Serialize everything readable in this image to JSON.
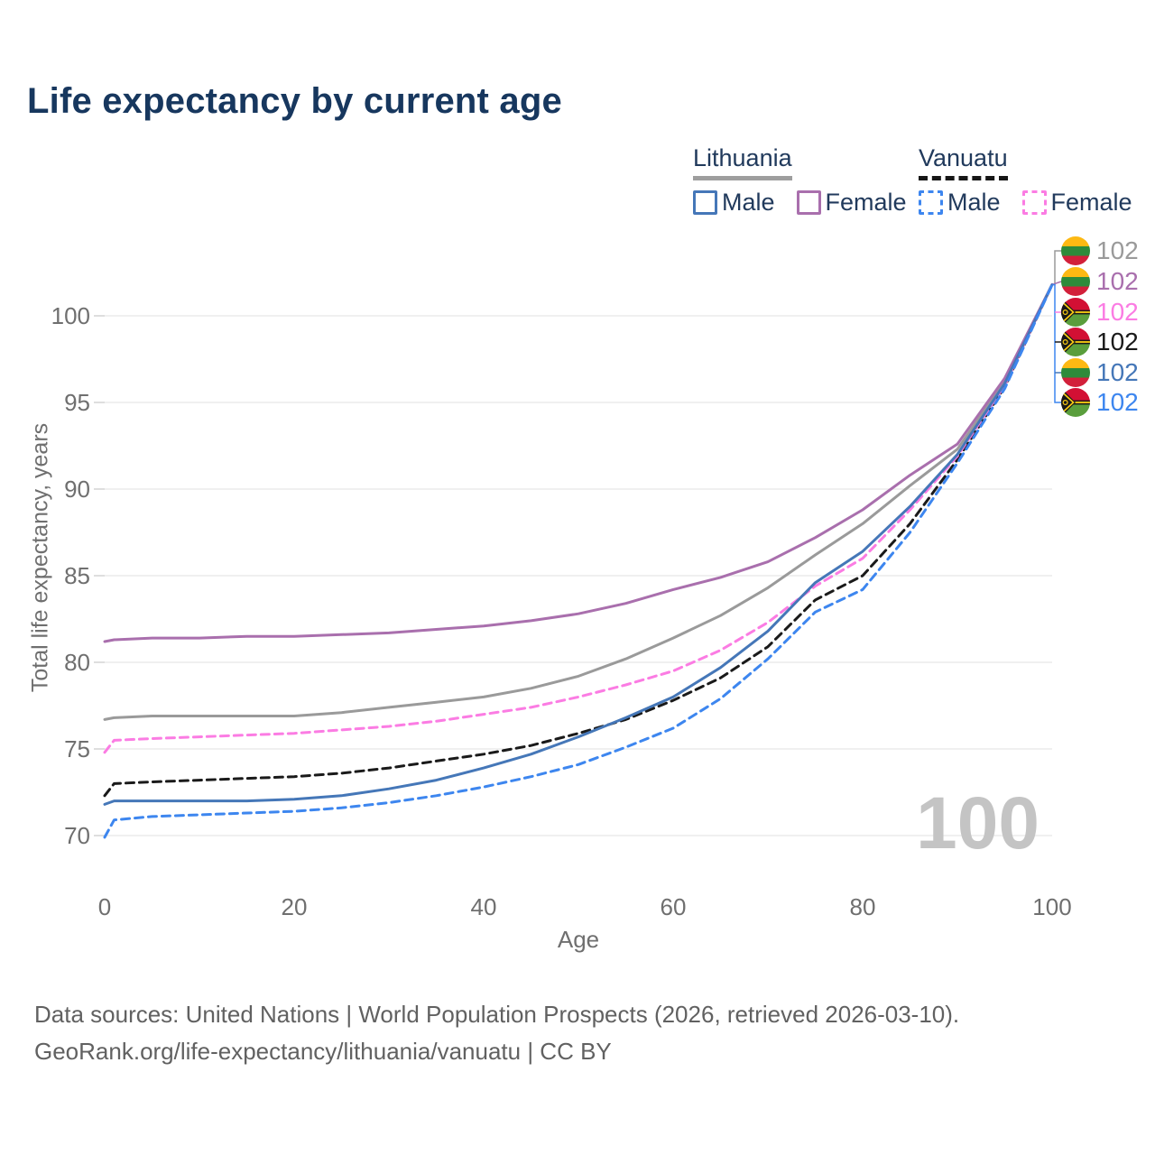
{
  "title": "Life expectancy by current age",
  "legend": {
    "groups": [
      {
        "id": "lithuania",
        "label": "Lithuania",
        "line_style": "solid",
        "line_color": "#9e9e9e",
        "items": [
          {
            "label": "Male",
            "color": "#4577b8",
            "dashed": false
          },
          {
            "label": "Female",
            "color": "#a96fad",
            "dashed": false
          }
        ]
      },
      {
        "id": "vanuatu",
        "label": "Vanuatu",
        "line_style": "dashed",
        "line_color": "#161616",
        "items": [
          {
            "label": "Male",
            "color": "#3d86ef",
            "dashed": true
          },
          {
            "label": "Female",
            "color": "#fb7ce3",
            "dashed": true
          }
        ]
      }
    ]
  },
  "chart_data": {
    "type": "line",
    "xlabel": "Age",
    "ylabel": "Total life expectancy, years",
    "x_ticks": [
      0,
      20,
      40,
      60,
      80,
      100
    ],
    "y_ticks": [
      70,
      75,
      80,
      85,
      90,
      95,
      100
    ],
    "xlim": [
      0,
      100
    ],
    "ylim": [
      67,
      104
    ],
    "grid": "horizontal",
    "legend_position": "top-right",
    "watermark": "100",
    "x": [
      0,
      1,
      5,
      10,
      15,
      20,
      25,
      30,
      35,
      40,
      45,
      50,
      55,
      60,
      65,
      70,
      75,
      80,
      85,
      90,
      95,
      100
    ],
    "series": [
      {
        "id": "lt-total",
        "name": "Lithuania",
        "country": "Lithuania",
        "sex": "Both",
        "color": "#9a9a9a",
        "dashed": false,
        "flag": "lt",
        "end_label": "102",
        "values": [
          76.7,
          76.8,
          76.9,
          76.9,
          76.9,
          76.9,
          77.1,
          77.4,
          77.7,
          78.0,
          78.5,
          79.2,
          80.2,
          81.4,
          82.7,
          84.3,
          86.2,
          88.0,
          90.2,
          92.3,
          96.2,
          101.8
        ]
      },
      {
        "id": "lt-female",
        "name": "Lithuania Female",
        "country": "Lithuania",
        "sex": "Female",
        "color": "#a96fad",
        "dashed": false,
        "flag": "lt",
        "end_label": "102",
        "values": [
          81.2,
          81.3,
          81.4,
          81.4,
          81.5,
          81.5,
          81.6,
          81.7,
          81.9,
          82.1,
          82.4,
          82.8,
          83.4,
          84.2,
          84.9,
          85.8,
          87.2,
          88.8,
          90.8,
          92.6,
          96.4,
          101.8
        ]
      },
      {
        "id": "vu-female",
        "name": "Vanuatu Female",
        "country": "Vanuatu",
        "sex": "Female",
        "color": "#fb7ce3",
        "dashed": true,
        "flag": "vu",
        "end_label": "102",
        "values": [
          74.8,
          75.5,
          75.6,
          75.7,
          75.8,
          75.9,
          76.1,
          76.3,
          76.6,
          77.0,
          77.4,
          78.0,
          78.7,
          79.5,
          80.7,
          82.3,
          84.4,
          86.0,
          88.8,
          91.9,
          96.0,
          101.8
        ]
      },
      {
        "id": "vu-total",
        "name": "Vanuatu",
        "country": "Vanuatu",
        "sex": "Both",
        "color": "#1a1a1a",
        "dashed": true,
        "flag": "vu",
        "end_label": "102",
        "values": [
          72.3,
          73.0,
          73.1,
          73.2,
          73.3,
          73.4,
          73.6,
          73.9,
          74.3,
          74.7,
          75.2,
          75.9,
          76.7,
          77.8,
          79.1,
          80.9,
          83.6,
          85.0,
          88.0,
          91.7,
          95.9,
          101.8
        ]
      },
      {
        "id": "lt-male",
        "name": "Lithuania Male",
        "country": "Lithuania",
        "sex": "Male",
        "color": "#4577b8",
        "dashed": false,
        "flag": "lt",
        "end_label": "102",
        "values": [
          71.8,
          72.0,
          72.0,
          72.0,
          72.0,
          72.1,
          72.3,
          72.7,
          73.2,
          73.9,
          74.7,
          75.7,
          76.8,
          78.0,
          79.7,
          81.8,
          84.6,
          86.4,
          89.0,
          92.0,
          96.1,
          101.8
        ]
      },
      {
        "id": "vu-male",
        "name": "Vanuatu Male",
        "country": "Vanuatu",
        "sex": "Male",
        "color": "#3d86ef",
        "dashed": true,
        "flag": "vu",
        "end_label": "102",
        "values": [
          69.9,
          70.9,
          71.1,
          71.2,
          71.3,
          71.4,
          71.6,
          71.9,
          72.3,
          72.8,
          73.4,
          74.1,
          75.1,
          76.2,
          77.9,
          80.2,
          82.9,
          84.2,
          87.5,
          91.5,
          95.8,
          101.8
        ]
      }
    ]
  },
  "flags": {
    "lt": {
      "yellow": "#FDB913",
      "green": "#2e8b3a",
      "red": "#d2203a"
    },
    "vu": {
      "red": "#D21034",
      "green": "#5a9e3c",
      "black": "#181818",
      "yellow": "#FDCE12"
    }
  },
  "footer": {
    "line1": "Data sources: United Nations | World Population Prospects (2026, retrieved 2026-03-10).",
    "line2": "GeoRank.org/life-expectancy/lithuania/vanuatu | CC BY"
  }
}
